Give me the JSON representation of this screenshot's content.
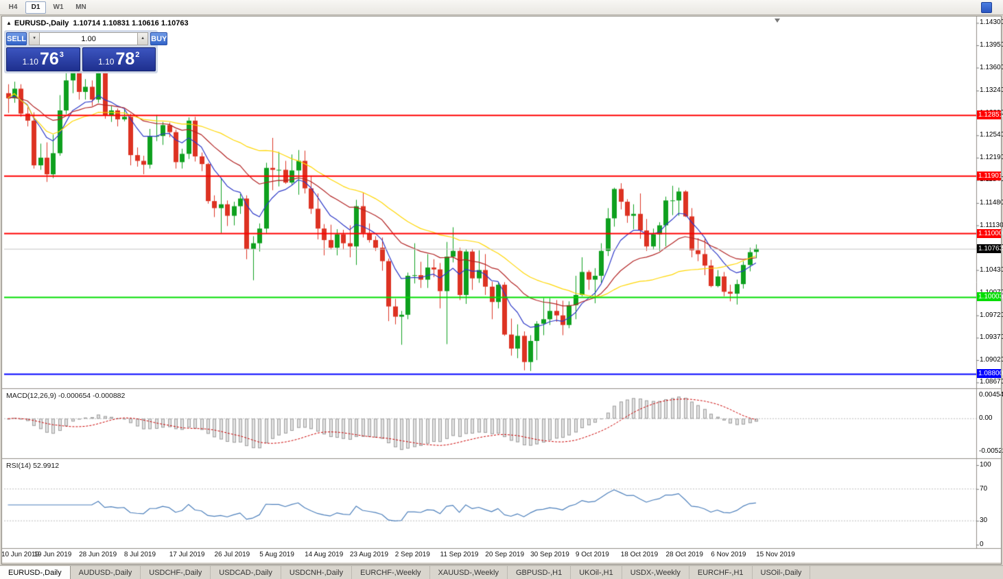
{
  "toolbar": {
    "timeframes": [
      {
        "label": "H4",
        "active": false
      },
      {
        "label": "D1",
        "active": true
      },
      {
        "label": "W1",
        "active": false
      },
      {
        "label": "MN",
        "active": false
      }
    ]
  },
  "chart_header": {
    "marker": "▲",
    "symbol_label": "EURUSD-,Daily",
    "ohlc": "1.10714 1.10831 1.10616 1.10763"
  },
  "one_click": {
    "sell_label": "SELL",
    "buy_label": "BUY",
    "volume": "1.00",
    "spin_down_glyph": "▼",
    "spin_up_glyph": "▲",
    "sell_price": {
      "prefix": "1.10",
      "big": "76",
      "sup": "3"
    },
    "buy_price": {
      "prefix": "1.10",
      "big": "78",
      "sup": "2"
    }
  },
  "chart_data": {
    "type": "candlestick",
    "symbol": "EURUSD-",
    "timeframe": "Daily",
    "bull_color": "#0EA01E",
    "bear_color": "#DD3222",
    "price_range": [
      1.086,
      1.1438
    ],
    "y_tick_labels": [
      "1.14300",
      "1.13950",
      "1.13600",
      "1.13240",
      "1.12890",
      "1.12540",
      "1.12190",
      "1.11840",
      "1.11480",
      "1.11130",
      "1.10780",
      "1.10430",
      "1.10070",
      "1.09720",
      "1.09370",
      "1.09020",
      "1.08670"
    ],
    "x_tick_labels": [
      "10 Jun 2019",
      "19 Jun 2019",
      "28 Jun 2019",
      "8 Jul 2019",
      "17 Jul 2019",
      "26 Jul 2019",
      "5 Aug 2019",
      "14 Aug 2019",
      "23 Aug 2019",
      "2 Sep 2019",
      "11 Sep 2019",
      "20 Sep 2019",
      "30 Sep 2019",
      "9 Oct 2019",
      "18 Oct 2019",
      "28 Oct 2019",
      "6 Nov 2019",
      "15 Nov 2019"
    ],
    "current_price": {
      "label": "1.10763",
      "value": 1.10763,
      "bg": "#000000"
    },
    "levels": [
      {
        "label": "1.12851",
        "value": 1.12851,
        "color": "#FF0000"
      },
      {
        "label": "1.11901",
        "value": 1.11901,
        "color": "#FF0000"
      },
      {
        "label": "1.11000",
        "value": 1.11,
        "color": "#FF0000"
      },
      {
        "label": "1.10003",
        "value": 1.10003,
        "color": "#00DD00"
      },
      {
        "label": "1.08800",
        "value": 1.088,
        "color": "#0000FF"
      }
    ],
    "ma_lines": [
      {
        "period": 8,
        "method": "ema",
        "color": "#2C38C8"
      },
      {
        "period": 21,
        "method": "ema",
        "color": "#B22222"
      },
      {
        "period": 34,
        "method": "sma",
        "color": "#FFD700"
      }
    ],
    "indicators": [
      {
        "name": "MACD",
        "label": "MACD(12,26,9) -0.000654 -0.000882",
        "axis_labels": [
          "0.0045436",
          "0.00",
          "-0.0052205"
        ],
        "histogram_color": "#E0E0E0",
        "histogram_border": "#9E9E9E",
        "signal_color": "#CC0000"
      },
      {
        "name": "RSI",
        "label": "RSI(14) 52.9912",
        "axis_labels": [
          "100",
          "70",
          "30",
          "0"
        ],
        "levels": [
          70,
          30
        ],
        "line_color": "#4A7EBB"
      }
    ],
    "candles": [
      [
        "2019-06-10",
        1.132,
        1.1334,
        1.1289,
        1.1312
      ],
      [
        "2019-06-11",
        1.1312,
        1.1338,
        1.1305,
        1.1327
      ],
      [
        "2019-06-12",
        1.1327,
        1.1334,
        1.1283,
        1.1288
      ],
      [
        "2019-06-13",
        1.1288,
        1.1298,
        1.1268,
        1.1277
      ],
      [
        "2019-06-14",
        1.1277,
        1.129,
        1.1202,
        1.1207
      ],
      [
        "2019-06-17",
        1.1207,
        1.1241,
        1.12,
        1.1219
      ],
      [
        "2019-06-18",
        1.1219,
        1.1243,
        1.1181,
        1.1193
      ],
      [
        "2019-06-19",
        1.1193,
        1.1255,
        1.1187,
        1.1226
      ],
      [
        "2019-06-20",
        1.1226,
        1.1317,
        1.1222,
        1.1293
      ],
      [
        "2019-06-21",
        1.1293,
        1.1354,
        1.1287,
        1.134
      ],
      [
        "2019-06-24",
        1.134,
        1.136,
        1.132,
        1.1355
      ],
      [
        "2019-06-25",
        1.1355,
        1.1362,
        1.131,
        1.1322
      ],
      [
        "2019-06-26",
        1.1322,
        1.1342,
        1.131,
        1.133
      ],
      [
        "2019-06-27",
        1.133,
        1.134,
        1.13,
        1.131
      ],
      [
        "2019-06-28",
        1.131,
        1.136,
        1.1305,
        1.1352
      ],
      [
        "2019-07-01",
        1.1352,
        1.1355,
        1.128,
        1.1285
      ],
      [
        "2019-07-02",
        1.1285,
        1.13,
        1.1275,
        1.1293
      ],
      [
        "2019-07-03",
        1.1293,
        1.1296,
        1.1268,
        1.1279
      ],
      [
        "2019-07-04",
        1.1279,
        1.1295,
        1.1276,
        1.1283
      ],
      [
        "2019-07-05",
        1.1283,
        1.1288,
        1.1207,
        1.1223
      ],
      [
        "2019-07-08",
        1.1223,
        1.1235,
        1.1205,
        1.1214
      ],
      [
        "2019-07-09",
        1.1214,
        1.1222,
        1.1193,
        1.1208
      ],
      [
        "2019-07-10",
        1.1208,
        1.1264,
        1.1202,
        1.1252
      ],
      [
        "2019-07-11",
        1.1252,
        1.1286,
        1.1245,
        1.1253
      ],
      [
        "2019-07-12",
        1.1253,
        1.1275,
        1.1239,
        1.127
      ],
      [
        "2019-07-15",
        1.127,
        1.1274,
        1.1251,
        1.1259
      ],
      [
        "2019-07-16",
        1.1259,
        1.1263,
        1.1202,
        1.1212
      ],
      [
        "2019-07-17",
        1.1212,
        1.1233,
        1.1202,
        1.1225
      ],
      [
        "2019-07-18",
        1.1225,
        1.1282,
        1.1217,
        1.1277
      ],
      [
        "2019-07-19",
        1.1277,
        1.1283,
        1.1213,
        1.1221
      ],
      [
        "2019-07-22",
        1.1221,
        1.1227,
        1.1198,
        1.1209
      ],
      [
        "2019-07-23",
        1.1209,
        1.1211,
        1.1147,
        1.1151
      ],
      [
        "2019-07-24",
        1.1151,
        1.116,
        1.1126,
        1.114
      ],
      [
        "2019-07-25",
        1.114,
        1.1187,
        1.1101,
        1.1146
      ],
      [
        "2019-07-26",
        1.1146,
        1.1152,
        1.1112,
        1.1128
      ],
      [
        "2019-07-29",
        1.1128,
        1.115,
        1.1113,
        1.1143
      ],
      [
        "2019-07-30",
        1.1143,
        1.1162,
        1.1131,
        1.1155
      ],
      [
        "2019-07-31",
        1.1155,
        1.116,
        1.106,
        1.1076
      ],
      [
        "2019-08-01",
        1.1076,
        1.1096,
        1.1027,
        1.1085
      ],
      [
        "2019-08-02",
        1.1085,
        1.1116,
        1.1072,
        1.1108
      ],
      [
        "2019-08-05",
        1.1108,
        1.1211,
        1.1101,
        1.1203
      ],
      [
        "2019-08-06",
        1.1203,
        1.125,
        1.1168,
        1.12
      ],
      [
        "2019-08-07",
        1.12,
        1.1228,
        1.1174,
        1.12
      ],
      [
        "2019-08-08",
        1.12,
        1.1214,
        1.1178,
        1.118
      ],
      [
        "2019-08-09",
        1.118,
        1.1224,
        1.1177,
        1.1199
      ],
      [
        "2019-08-12",
        1.1199,
        1.1231,
        1.1161,
        1.1214
      ],
      [
        "2019-08-13",
        1.1214,
        1.123,
        1.1163,
        1.1171
      ],
      [
        "2019-08-14",
        1.1171,
        1.1191,
        1.1131,
        1.1139
      ],
      [
        "2019-08-15",
        1.1139,
        1.1163,
        1.1091,
        1.1108
      ],
      [
        "2019-08-16",
        1.1108,
        1.1115,
        1.1066,
        1.109
      ],
      [
        "2019-08-19",
        1.109,
        1.1114,
        1.1075,
        1.1078
      ],
      [
        "2019-08-20",
        1.1078,
        1.1107,
        1.1066,
        1.1099
      ],
      [
        "2019-08-21",
        1.1099,
        1.1106,
        1.1075,
        1.1085
      ],
      [
        "2019-08-22",
        1.1085,
        1.1113,
        1.1063,
        1.108
      ],
      [
        "2019-08-23",
        1.108,
        1.1153,
        1.1051,
        1.1143
      ],
      [
        "2019-08-26",
        1.1143,
        1.1164,
        1.1094,
        1.1101
      ],
      [
        "2019-08-27",
        1.1101,
        1.1116,
        1.1086,
        1.109
      ],
      [
        "2019-08-28",
        1.109,
        1.1096,
        1.1073,
        1.1078
      ],
      [
        "2019-08-29",
        1.1078,
        1.1094,
        1.1042,
        1.1057
      ],
      [
        "2019-08-30",
        1.1057,
        1.1061,
        1.0963,
        1.0986
      ],
      [
        "2019-09-02",
        1.0986,
        1.0998,
        1.0958,
        1.097
      ],
      [
        "2019-09-03",
        1.097,
        1.0979,
        1.0926,
        1.0973
      ],
      [
        "2019-09-04",
        1.0973,
        1.1039,
        1.0966,
        1.1034
      ],
      [
        "2019-09-05",
        1.1034,
        1.1085,
        1.1022,
        1.1035
      ],
      [
        "2019-09-06",
        1.1035,
        1.1056,
        1.1015,
        1.1028
      ],
      [
        "2019-09-09",
        1.1028,
        1.1068,
        1.1015,
        1.1047
      ],
      [
        "2019-09-10",
        1.1047,
        1.106,
        1.1032,
        1.1044
      ],
      [
        "2019-09-11",
        1.1044,
        1.1054,
        1.0983,
        1.101
      ],
      [
        "2019-09-12",
        1.101,
        1.1087,
        1.0927,
        1.1064
      ],
      [
        "2019-09-13",
        1.1064,
        1.111,
        1.1055,
        1.1073
      ],
      [
        "2019-09-16",
        1.1073,
        1.1078,
        1.0996,
        1.1004
      ],
      [
        "2019-09-17",
        1.1004,
        1.1076,
        1.099,
        1.1072
      ],
      [
        "2019-09-18",
        1.1072,
        1.1076,
        1.1012,
        1.103
      ],
      [
        "2019-09-19",
        1.103,
        1.1074,
        1.1023,
        1.1043
      ],
      [
        "2019-09-20",
        1.1043,
        1.1068,
        1.1004,
        1.1017
      ],
      [
        "2019-09-23",
        1.1017,
        1.1025,
        1.0966,
        1.0993
      ],
      [
        "2019-09-24",
        1.0993,
        1.1024,
        1.0983,
        1.102
      ],
      [
        "2019-09-25",
        1.102,
        1.1024,
        1.094,
        1.0942
      ],
      [
        "2019-09-26",
        1.0942,
        1.0967,
        1.0909,
        1.092
      ],
      [
        "2019-09-27",
        1.092,
        1.0958,
        1.0905,
        1.094
      ],
      [
        "2019-09-30",
        1.094,
        1.0947,
        1.0886,
        1.0899
      ],
      [
        "2019-10-01",
        1.0899,
        1.0941,
        1.0885,
        1.0932
      ],
      [
        "2019-10-02",
        1.0932,
        1.0963,
        1.0902,
        1.0959
      ],
      [
        "2019-10-03",
        1.0959,
        1.0999,
        1.0941,
        1.0966
      ],
      [
        "2019-10-04",
        1.0966,
        1.0999,
        1.0957,
        1.0979
      ],
      [
        "2019-10-07",
        1.0979,
        1.0996,
        1.0962,
        1.0972
      ],
      [
        "2019-10-08",
        1.0972,
        1.0995,
        1.0941,
        1.0957
      ],
      [
        "2019-10-09",
        1.0957,
        1.0994,
        1.0952,
        1.0988
      ],
      [
        "2019-10-10",
        1.0988,
        1.1034,
        1.0966,
        1.1004
      ],
      [
        "2019-10-11",
        1.1004,
        1.1063,
        1.1002,
        1.104
      ],
      [
        "2019-10-14",
        1.104,
        1.1043,
        1.1012,
        1.1028
      ],
      [
        "2019-10-15",
        1.1028,
        1.1046,
        1.0991,
        1.1034
      ],
      [
        "2019-10-16",
        1.1034,
        1.1085,
        1.1023,
        1.1073
      ],
      [
        "2019-10-17",
        1.1073,
        1.114,
        1.1065,
        1.1124
      ],
      [
        "2019-10-18",
        1.1124,
        1.1172,
        1.1111,
        1.117
      ],
      [
        "2019-10-21",
        1.117,
        1.1179,
        1.1138,
        1.115
      ],
      [
        "2019-10-22",
        1.115,
        1.1154,
        1.1117,
        1.1128
      ],
      [
        "2019-10-23",
        1.1128,
        1.1146,
        1.1107,
        1.1131
      ],
      [
        "2019-10-24",
        1.1131,
        1.1163,
        1.1092,
        1.1105
      ],
      [
        "2019-10-25",
        1.1105,
        1.1123,
        1.1073,
        1.108
      ],
      [
        "2019-10-28",
        1.108,
        1.1108,
        1.1075,
        1.1099
      ],
      [
        "2019-10-29",
        1.1099,
        1.1118,
        1.1073,
        1.1113
      ],
      [
        "2019-10-30",
        1.1113,
        1.1158,
        1.108,
        1.1152
      ],
      [
        "2019-10-31",
        1.1152,
        1.1175,
        1.1129,
        1.1152
      ],
      [
        "2019-11-01",
        1.1152,
        1.1172,
        1.1128,
        1.1166
      ],
      [
        "2019-11-04",
        1.1166,
        1.1168,
        1.1126,
        1.1127
      ],
      [
        "2019-11-05",
        1.1127,
        1.114,
        1.1063,
        1.1074
      ],
      [
        "2019-11-06",
        1.1074,
        1.1093,
        1.1057,
        1.1068
      ],
      [
        "2019-11-07",
        1.1068,
        1.1092,
        1.1035,
        1.105
      ],
      [
        "2019-11-08",
        1.105,
        1.1059,
        1.1016,
        1.1018
      ],
      [
        "2019-11-11",
        1.1018,
        1.1043,
        1.1016,
        1.1033
      ],
      [
        "2019-11-12",
        1.1033,
        1.104,
        1.1002,
        1.1009
      ],
      [
        "2019-11-13",
        1.1009,
        1.102,
        1.0994,
        1.1006
      ],
      [
        "2019-11-14",
        1.1006,
        1.1028,
        1.0989,
        1.1021
      ],
      [
        "2019-11-15",
        1.1021,
        1.1057,
        1.1014,
        1.1051
      ],
      [
        "2019-11-18",
        1.1051,
        1.1078,
        1.1041,
        1.1071
      ],
      [
        "2019-11-19",
        1.10714,
        1.10831,
        1.10616,
        1.10763
      ]
    ]
  },
  "tabs": [
    {
      "label": "EURUSD-,Daily",
      "active": true
    },
    {
      "label": "AUDUSD-,Daily",
      "active": false
    },
    {
      "label": "USDCHF-,Daily",
      "active": false
    },
    {
      "label": "USDCAD-,Daily",
      "active": false
    },
    {
      "label": "USDCNH-,Daily",
      "active": false
    },
    {
      "label": "EURCHF-,Weekly",
      "active": false
    },
    {
      "label": "XAUUSD-,Weekly",
      "active": false
    },
    {
      "label": "GBPUSD-,H1",
      "active": false
    },
    {
      "label": "UKOil-,H1",
      "active": false
    },
    {
      "label": "USDX-,Weekly",
      "active": false
    },
    {
      "label": "EURCHF-,H1",
      "active": false
    },
    {
      "label": "USOil-,Daily",
      "active": false
    }
  ]
}
